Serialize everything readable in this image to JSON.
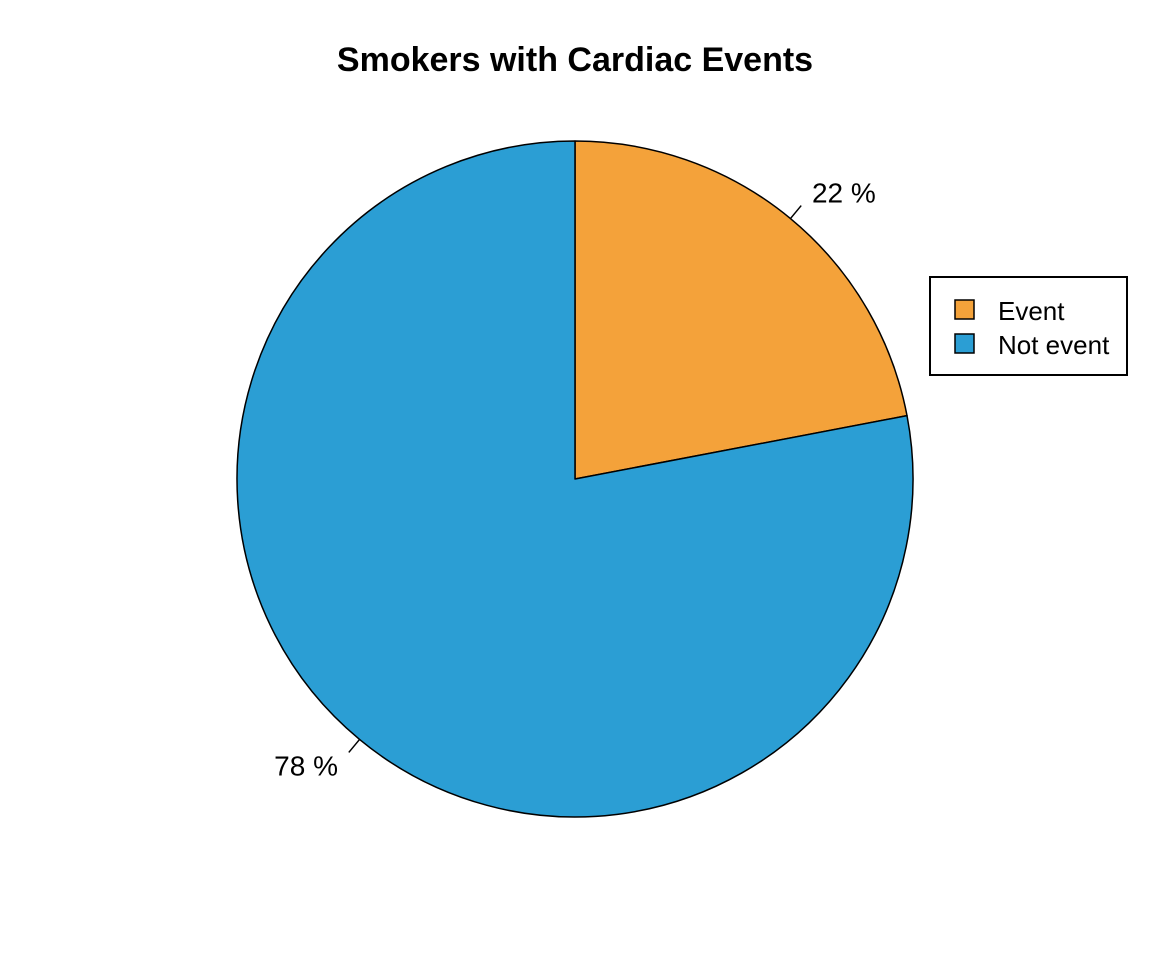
{
  "chart_data": {
    "type": "pie",
    "title": "Smokers with Cardiac Events",
    "slices": [
      {
        "label": "Event",
        "value": 22,
        "text": "22 %",
        "color": "#F4A23A"
      },
      {
        "label": "Not event",
        "value": 78,
        "text": "78 %",
        "color": "#2B9ED4"
      }
    ],
    "legend": {
      "placement": "right",
      "entries": [
        "Event",
        "Not event"
      ]
    }
  }
}
